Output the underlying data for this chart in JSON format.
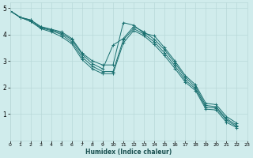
{
  "title": "",
  "xlabel": "Humidex (Indice chaleur)",
  "bg_color": "#d0ecec",
  "grid_color": "#b8d8d8",
  "line_color": "#1a7070",
  "xlim": [
    0,
    23
  ],
  "ylim": [
    0,
    5.2
  ],
  "yticks": [
    1,
    2,
    3,
    4,
    5
  ],
  "xticks": [
    0,
    1,
    2,
    3,
    4,
    5,
    6,
    7,
    8,
    9,
    10,
    11,
    12,
    13,
    14,
    15,
    16,
    17,
    18,
    19,
    20,
    21,
    22,
    23
  ],
  "series": [
    {
      "x": [
        0,
        1,
        2,
        3,
        4,
        5,
        6,
        7,
        8,
        9,
        10,
        11,
        12,
        13,
        14,
        15,
        16,
        17,
        18,
        19,
        20,
        21,
        22
      ],
      "y": [
        4.9,
        4.65,
        4.55,
        4.3,
        4.2,
        4.1,
        3.85,
        3.3,
        3.0,
        2.85,
        2.85,
        4.45,
        4.35,
        4.05,
        3.95,
        3.5,
        3.0,
        2.45,
        2.1,
        1.4,
        1.35,
        0.9,
        0.65
      ]
    },
    {
      "x": [
        0,
        1,
        2,
        3,
        4,
        5,
        6,
        7,
        8,
        9,
        10,
        11,
        12,
        13,
        14,
        15,
        16,
        17,
        18,
        19,
        20,
        21,
        22
      ],
      "y": [
        4.9,
        4.65,
        4.55,
        4.28,
        4.18,
        4.05,
        3.8,
        3.25,
        2.9,
        2.7,
        3.6,
        3.85,
        4.3,
        4.1,
        3.82,
        3.42,
        2.92,
        2.38,
        2.02,
        1.32,
        1.27,
        0.82,
        0.57
      ]
    },
    {
      "x": [
        0,
        1,
        2,
        3,
        4,
        5,
        6,
        7,
        8,
        9,
        10,
        11,
        12,
        13,
        14,
        15,
        16,
        17,
        18,
        19,
        20,
        21,
        22
      ],
      "y": [
        4.9,
        4.65,
        4.5,
        4.25,
        4.15,
        4.0,
        3.72,
        3.15,
        2.8,
        2.6,
        2.6,
        3.8,
        4.22,
        4.02,
        3.72,
        3.3,
        2.82,
        2.28,
        1.95,
        1.25,
        1.22,
        0.76,
        0.52
      ]
    },
    {
      "x": [
        0,
        1,
        2,
        3,
        4,
        5,
        6,
        7,
        8,
        9,
        10,
        11,
        12,
        13,
        14,
        15,
        16,
        17,
        18,
        19,
        20,
        21,
        22
      ],
      "y": [
        4.9,
        4.65,
        4.5,
        4.22,
        4.1,
        3.92,
        3.65,
        3.05,
        2.7,
        2.52,
        2.52,
        3.68,
        4.15,
        3.95,
        3.62,
        3.2,
        2.72,
        2.2,
        1.88,
        1.18,
        1.15,
        0.68,
        0.48
      ]
    }
  ]
}
